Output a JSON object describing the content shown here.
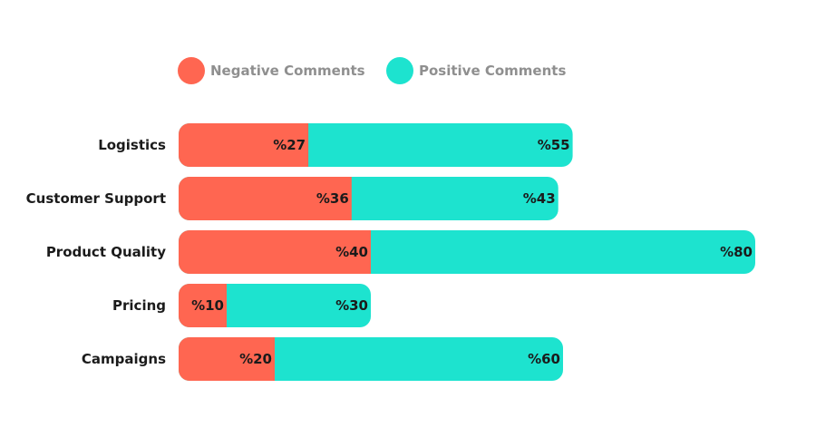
{
  "chart_data": {
    "type": "bar",
    "orientation": "horizontal",
    "stacked": true,
    "categories": [
      "Logistics",
      "Customer Support",
      "Product Quality",
      "Pricing",
      "Campaigns"
    ],
    "series": [
      {
        "name": "Negative Comments",
        "values": [
          27,
          36,
          40,
          10,
          20
        ],
        "labels": [
          "%27",
          "%36",
          "%40",
          "%10",
          "%20"
        ],
        "color": "#ff6651"
      },
      {
        "name": "Positive Comments",
        "values": [
          55,
          43,
          80,
          30,
          60
        ],
        "labels": [
          "%55",
          "%43",
          "%80",
          "%30",
          "%60"
        ],
        "color": "#1de3cf"
      }
    ],
    "xlim": [
      0,
      120
    ],
    "grid": false,
    "legend_position": "top-left"
  }
}
